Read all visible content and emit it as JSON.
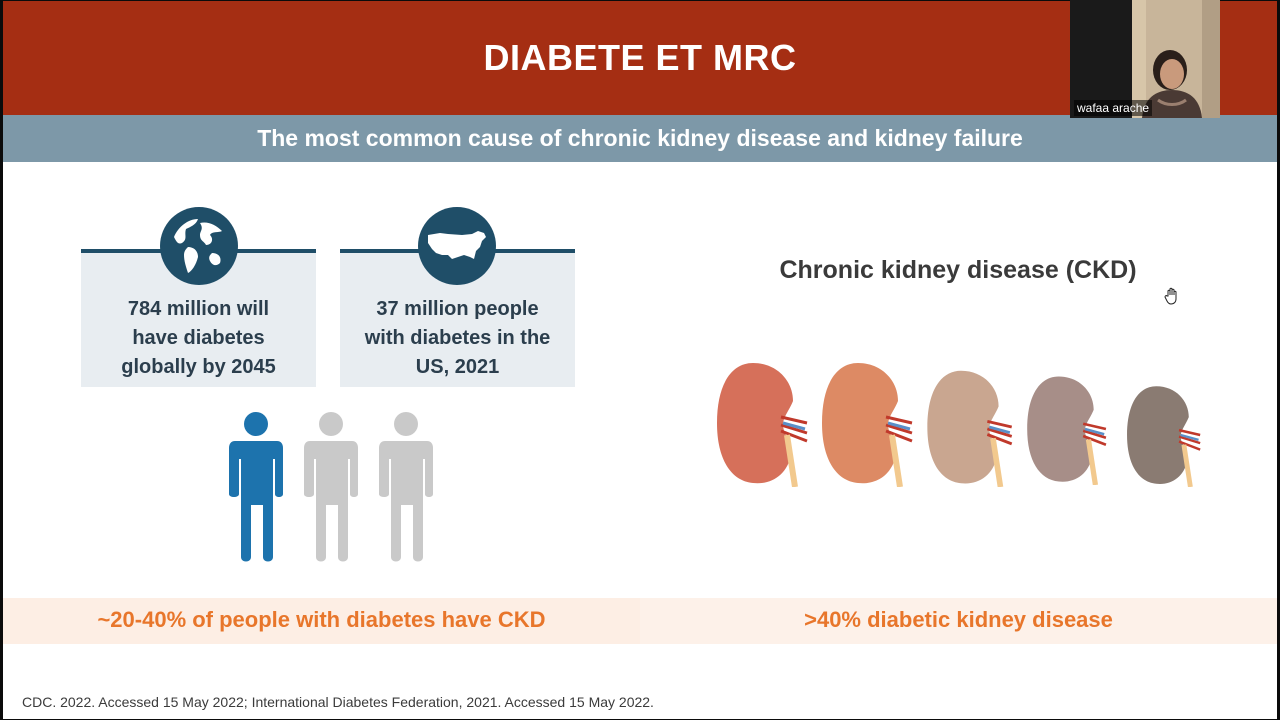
{
  "slide": {
    "title": "DIABETE ET MRC",
    "subtitle": "The most common cause of chronic kidney disease and kidney failure",
    "stats": [
      {
        "icon": "globe-icon",
        "lines": [
          "784 million will",
          "have diabetes",
          "globally by 2045"
        ]
      },
      {
        "icon": "us-map-icon",
        "lines": [
          "37 million people",
          "with diabetes in the",
          "US, 2021"
        ]
      }
    ],
    "people_icons": {
      "total": 3,
      "highlighted": 1,
      "highlight_color": "#1d73ad",
      "muted_color": "#c9c9c9"
    },
    "ckd_title": "Chronic kidney disease (CKD)",
    "left_band": "~20-40% of people with diabetes have CKD",
    "right_band": ">40% diabetic kidney disease",
    "footnote": "CDC. 2022. Accessed 15 May 2022; International Diabetes Federation, 2021. Accessed 15 May 2022."
  },
  "video": {
    "participant_name": "wafaa arache"
  },
  "colors": {
    "title_bar": "#a52e13",
    "subtitle_bar": "#7d98a8",
    "icon_navy": "#1f4e68",
    "accent_orange": "#e8762b"
  }
}
